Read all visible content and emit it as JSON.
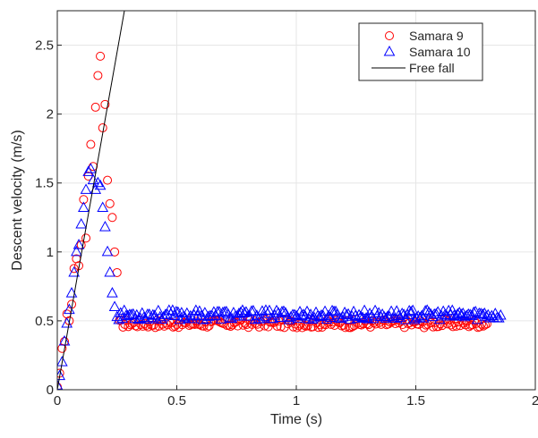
{
  "chart_data": {
    "type": "scatter",
    "xlabel": "Time (s)",
    "ylabel": "Descent velocity (m/s)",
    "xlim": [
      0,
      2
    ],
    "ylim": [
      0,
      2.75
    ],
    "xticks": [
      0,
      0.5,
      1,
      1.5,
      2
    ],
    "xtick_labels": [
      "0",
      "0.5",
      "1",
      "1.5",
      "2"
    ],
    "yticks": [
      0,
      0.5,
      1,
      1.5,
      2,
      2.5
    ],
    "ytick_labels": [
      "0",
      "0.5",
      "1",
      "1.5",
      "2",
      "2.5"
    ],
    "grid": true,
    "legend_position": "top-right",
    "series": [
      {
        "name": "Samara 9",
        "marker": "circle",
        "color": "#ff0000",
        "x": [
          0.0,
          0.01,
          0.02,
          0.03,
          0.04,
          0.05,
          0.06,
          0.07,
          0.08,
          0.09,
          0.1,
          0.11,
          0.12,
          0.13,
          0.14,
          0.15,
          0.16,
          0.17,
          0.18,
          0.19,
          0.2,
          0.21,
          0.22,
          0.23,
          0.24,
          0.25
        ],
        "y": [
          0.02,
          0.12,
          0.3,
          0.35,
          0.55,
          0.5,
          0.62,
          0.88,
          0.95,
          0.9,
          1.05,
          1.38,
          1.1,
          1.55,
          1.78,
          1.62,
          2.05,
          2.28,
          2.42,
          1.9,
          2.07,
          1.52,
          1.35,
          1.25,
          1.0,
          0.85
        ],
        "plateau": {
          "x_start": 0.26,
          "x_end": 1.8,
          "step": 0.0075,
          "y_center": 0.48,
          "y_spread": 0.03
        }
      },
      {
        "name": "Samara 10",
        "marker": "triangle",
        "color": "#0000ff",
        "x": [
          0.0,
          0.01,
          0.02,
          0.03,
          0.04,
          0.05,
          0.06,
          0.07,
          0.08,
          0.09,
          0.1,
          0.11,
          0.12,
          0.13,
          0.14,
          0.15,
          0.16,
          0.17,
          0.18,
          0.19,
          0.2,
          0.21,
          0.22,
          0.23,
          0.24
        ],
        "y": [
          0.03,
          0.1,
          0.2,
          0.35,
          0.48,
          0.58,
          0.7,
          0.85,
          1.0,
          1.05,
          1.2,
          1.32,
          1.45,
          1.58,
          1.6,
          1.52,
          1.45,
          1.5,
          1.48,
          1.32,
          1.18,
          1.0,
          0.85,
          0.7,
          0.6
        ],
        "plateau": {
          "x_start": 0.25,
          "x_end": 1.86,
          "step": 0.0075,
          "y_center": 0.54,
          "y_spread": 0.035
        }
      },
      {
        "name": "Free fall",
        "marker": "line",
        "color": "#000000",
        "x": [
          0,
          0.29
        ],
        "y": [
          0,
          2.84
        ]
      }
    ]
  }
}
